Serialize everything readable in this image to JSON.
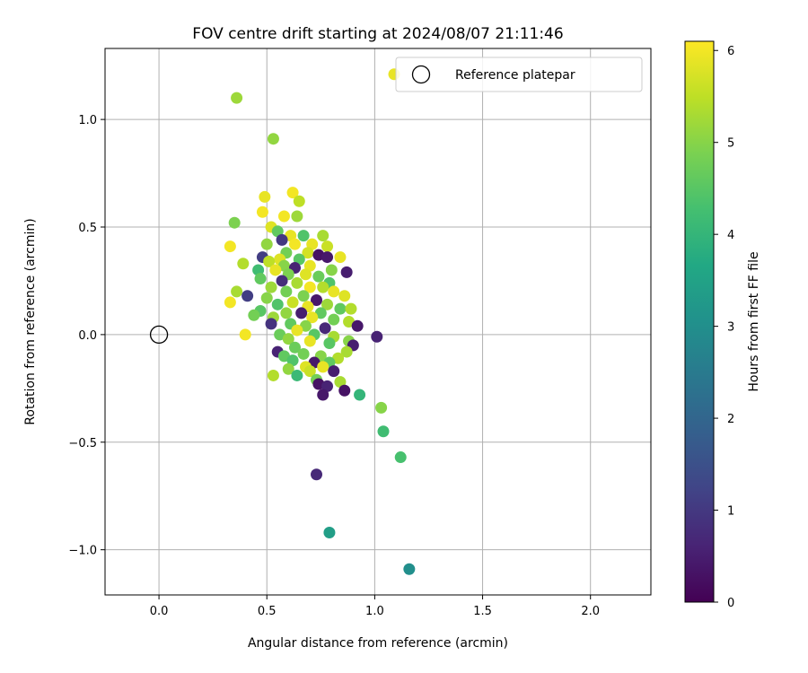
{
  "chart_data": {
    "type": "scatter",
    "title": "FOV centre drift starting at 2024/08/07 21:11:46",
    "xlabel": "Angular distance from reference (arcmin)",
    "ylabel": "Rotation from reference (arcmin)",
    "xlim": [
      -0.25,
      2.28
    ],
    "ylim": [
      -1.21,
      1.33
    ],
    "xticks": [
      0.0,
      0.5,
      1.0,
      1.5,
      2.0
    ],
    "xtick_labels": [
      "0.0",
      "0.5",
      "1.0",
      "1.5",
      "2.0"
    ],
    "yticks": [
      -1.0,
      -0.5,
      0.0,
      0.5,
      1.0
    ],
    "ytick_labels": [
      "−1.0",
      "−0.5",
      "0.0",
      "0.5",
      "1.0"
    ],
    "grid": true,
    "legend": {
      "placement": "top-right",
      "entries": [
        "Reference platepar"
      ]
    },
    "reference_point": {
      "x": 0.0,
      "y": 0.0,
      "label": "Reference platepar"
    },
    "colorbar": {
      "label": "Hours from first FF file",
      "range": [
        0,
        6.1
      ],
      "ticks": [
        0,
        1,
        2,
        3,
        4,
        5,
        6
      ],
      "tick_labels": [
        "0",
        "1",
        "2",
        "3",
        "4",
        "5",
        "6"
      ],
      "colormap": "viridis"
    },
    "points": [
      {
        "x": 0.36,
        "y": 1.1,
        "c": 5.2
      },
      {
        "x": 0.53,
        "y": 0.91,
        "c": 5.1
      },
      {
        "x": 1.09,
        "y": 1.21,
        "c": 5.9
      },
      {
        "x": 0.62,
        "y": 0.66,
        "c": 6.0
      },
      {
        "x": 0.49,
        "y": 0.64,
        "c": 5.9
      },
      {
        "x": 0.65,
        "y": 0.62,
        "c": 5.5
      },
      {
        "x": 0.48,
        "y": 0.57,
        "c": 6.0
      },
      {
        "x": 0.35,
        "y": 0.52,
        "c": 4.9
      },
      {
        "x": 0.58,
        "y": 0.55,
        "c": 6.0
      },
      {
        "x": 0.64,
        "y": 0.55,
        "c": 5.2
      },
      {
        "x": 0.52,
        "y": 0.5,
        "c": 5.8
      },
      {
        "x": 0.55,
        "y": 0.48,
        "c": 4.6
      },
      {
        "x": 0.61,
        "y": 0.46,
        "c": 5.9
      },
      {
        "x": 0.67,
        "y": 0.46,
        "c": 4.4
      },
      {
        "x": 0.76,
        "y": 0.46,
        "c": 5.3
      },
      {
        "x": 0.57,
        "y": 0.44,
        "c": 1.0
      },
      {
        "x": 0.63,
        "y": 0.42,
        "c": 6.0
      },
      {
        "x": 0.71,
        "y": 0.42,
        "c": 5.9
      },
      {
        "x": 0.78,
        "y": 0.41,
        "c": 5.6
      },
      {
        "x": 0.5,
        "y": 0.42,
        "c": 5.1
      },
      {
        "x": 0.33,
        "y": 0.41,
        "c": 6.0
      },
      {
        "x": 0.59,
        "y": 0.38,
        "c": 4.8
      },
      {
        "x": 0.69,
        "y": 0.38,
        "c": 5.7
      },
      {
        "x": 0.74,
        "y": 0.37,
        "c": 0.3
      },
      {
        "x": 0.84,
        "y": 0.36,
        "c": 5.9
      },
      {
        "x": 0.48,
        "y": 0.36,
        "c": 1.1
      },
      {
        "x": 0.56,
        "y": 0.35,
        "c": 5.8
      },
      {
        "x": 0.65,
        "y": 0.35,
        "c": 4.5
      },
      {
        "x": 0.78,
        "y": 0.36,
        "c": 0.4
      },
      {
        "x": 0.51,
        "y": 0.34,
        "c": 5.5
      },
      {
        "x": 0.39,
        "y": 0.33,
        "c": 5.4
      },
      {
        "x": 0.58,
        "y": 0.32,
        "c": 5.0
      },
      {
        "x": 0.63,
        "y": 0.31,
        "c": 0.6
      },
      {
        "x": 0.7,
        "y": 0.32,
        "c": 5.9
      },
      {
        "x": 0.46,
        "y": 0.3,
        "c": 4.2
      },
      {
        "x": 0.54,
        "y": 0.3,
        "c": 5.9
      },
      {
        "x": 0.8,
        "y": 0.3,
        "c": 5.0
      },
      {
        "x": 0.87,
        "y": 0.29,
        "c": 0.5
      },
      {
        "x": 0.6,
        "y": 0.28,
        "c": 4.9
      },
      {
        "x": 0.68,
        "y": 0.28,
        "c": 5.8
      },
      {
        "x": 0.74,
        "y": 0.27,
        "c": 4.7
      },
      {
        "x": 0.47,
        "y": 0.26,
        "c": 4.6
      },
      {
        "x": 0.57,
        "y": 0.25,
        "c": 0.8
      },
      {
        "x": 0.64,
        "y": 0.24,
        "c": 5.3
      },
      {
        "x": 0.79,
        "y": 0.24,
        "c": 4.4
      },
      {
        "x": 0.52,
        "y": 0.22,
        "c": 5.2
      },
      {
        "x": 0.7,
        "y": 0.22,
        "c": 6.0
      },
      {
        "x": 0.76,
        "y": 0.22,
        "c": 5.4
      },
      {
        "x": 0.36,
        "y": 0.2,
        "c": 5.3
      },
      {
        "x": 0.59,
        "y": 0.2,
        "c": 4.8
      },
      {
        "x": 0.81,
        "y": 0.2,
        "c": 5.9
      },
      {
        "x": 0.41,
        "y": 0.18,
        "c": 1.1
      },
      {
        "x": 0.67,
        "y": 0.18,
        "c": 4.9
      },
      {
        "x": 0.86,
        "y": 0.18,
        "c": 5.8
      },
      {
        "x": 0.5,
        "y": 0.17,
        "c": 5.0
      },
      {
        "x": 0.73,
        "y": 0.16,
        "c": 0.4
      },
      {
        "x": 0.62,
        "y": 0.15,
        "c": 5.6
      },
      {
        "x": 0.33,
        "y": 0.15,
        "c": 6.0
      },
      {
        "x": 0.55,
        "y": 0.14,
        "c": 4.4
      },
      {
        "x": 0.78,
        "y": 0.14,
        "c": 5.2
      },
      {
        "x": 0.69,
        "y": 0.13,
        "c": 5.9
      },
      {
        "x": 0.84,
        "y": 0.12,
        "c": 4.6
      },
      {
        "x": 0.89,
        "y": 0.12,
        "c": 5.4
      },
      {
        "x": 0.47,
        "y": 0.11,
        "c": 4.5
      },
      {
        "x": 0.59,
        "y": 0.1,
        "c": 5.1
      },
      {
        "x": 0.66,
        "y": 0.1,
        "c": 0.5
      },
      {
        "x": 0.75,
        "y": 0.1,
        "c": 4.6
      },
      {
        "x": 0.44,
        "y": 0.09,
        "c": 4.8
      },
      {
        "x": 0.53,
        "y": 0.08,
        "c": 5.2
      },
      {
        "x": 0.71,
        "y": 0.08,
        "c": 5.9
      },
      {
        "x": 0.81,
        "y": 0.07,
        "c": 4.8
      },
      {
        "x": 0.88,
        "y": 0.06,
        "c": 5.4
      },
      {
        "x": 0.61,
        "y": 0.05,
        "c": 4.6
      },
      {
        "x": 0.52,
        "y": 0.05,
        "c": 0.9
      },
      {
        "x": 0.68,
        "y": 0.04,
        "c": 5.0
      },
      {
        "x": 0.92,
        "y": 0.04,
        "c": 0.4
      },
      {
        "x": 0.77,
        "y": 0.03,
        "c": 0.7
      },
      {
        "x": 0.64,
        "y": 0.02,
        "c": 5.9
      },
      {
        "x": 0.56,
        "y": 0.0,
        "c": 4.7
      },
      {
        "x": 0.4,
        "y": 0.0,
        "c": 6.0
      },
      {
        "x": 0.72,
        "y": 0.0,
        "c": 4.5
      },
      {
        "x": 0.81,
        "y": -0.01,
        "c": 5.3
      },
      {
        "x": 1.01,
        "y": -0.01,
        "c": 0.6
      },
      {
        "x": 0.6,
        "y": -0.02,
        "c": 5.1
      },
      {
        "x": 0.7,
        "y": -0.03,
        "c": 5.9
      },
      {
        "x": 0.88,
        "y": -0.03,
        "c": 5.0
      },
      {
        "x": 0.79,
        "y": -0.04,
        "c": 4.5
      },
      {
        "x": 0.9,
        "y": -0.05,
        "c": 0.5
      },
      {
        "x": 0.63,
        "y": -0.06,
        "c": 4.7
      },
      {
        "x": 0.55,
        "y": -0.08,
        "c": 0.6
      },
      {
        "x": 0.87,
        "y": -0.08,
        "c": 5.3
      },
      {
        "x": 0.67,
        "y": -0.09,
        "c": 4.8
      },
      {
        "x": 0.58,
        "y": -0.1,
        "c": 4.6
      },
      {
        "x": 0.75,
        "y": -0.1,
        "c": 5.0
      },
      {
        "x": 0.83,
        "y": -0.11,
        "c": 5.4
      },
      {
        "x": 0.62,
        "y": -0.12,
        "c": 4.4
      },
      {
        "x": 0.72,
        "y": -0.13,
        "c": 0.4
      },
      {
        "x": 0.79,
        "y": -0.13,
        "c": 4.6
      },
      {
        "x": 0.68,
        "y": -0.15,
        "c": 5.8
      },
      {
        "x": 0.76,
        "y": -0.15,
        "c": 5.9
      },
      {
        "x": 0.6,
        "y": -0.16,
        "c": 5.1
      },
      {
        "x": 0.7,
        "y": -0.17,
        "c": 5.6
      },
      {
        "x": 0.81,
        "y": -0.17,
        "c": 0.5
      },
      {
        "x": 0.53,
        "y": -0.19,
        "c": 5.4
      },
      {
        "x": 0.64,
        "y": -0.19,
        "c": 4.1
      },
      {
        "x": 0.73,
        "y": -0.21,
        "c": 4.8
      },
      {
        "x": 0.84,
        "y": -0.22,
        "c": 5.3
      },
      {
        "x": 0.74,
        "y": -0.23,
        "c": 0.3
      },
      {
        "x": 0.78,
        "y": -0.24,
        "c": 0.6
      },
      {
        "x": 0.86,
        "y": -0.26,
        "c": 0.3
      },
      {
        "x": 0.76,
        "y": -0.28,
        "c": 0.4
      },
      {
        "x": 0.93,
        "y": -0.28,
        "c": 4.0
      },
      {
        "x": 1.03,
        "y": -0.34,
        "c": 5.0
      },
      {
        "x": 1.04,
        "y": -0.45,
        "c": 4.2
      },
      {
        "x": 1.12,
        "y": -0.57,
        "c": 4.3
      },
      {
        "x": 0.73,
        "y": -0.65,
        "c": 0.7
      },
      {
        "x": 0.79,
        "y": -0.92,
        "c": 3.4
      },
      {
        "x": 1.16,
        "y": -1.09,
        "c": 3.0
      }
    ]
  }
}
